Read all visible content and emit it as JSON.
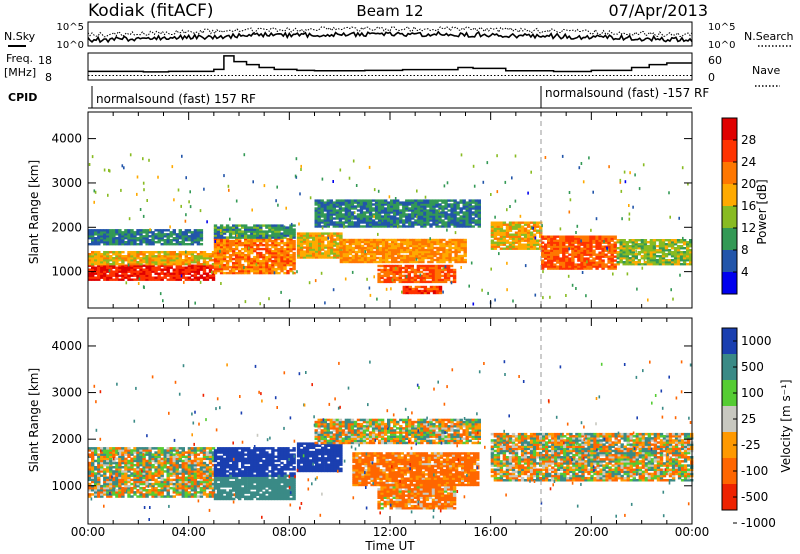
{
  "header": {
    "site": "Kodiak (fitACF)",
    "beam": "Beam 12",
    "date": "07/Apr/2013"
  },
  "noise": {
    "left_label": "N.Sky",
    "right_label": "N.Search",
    "left_ticks": [
      "10^5",
      "10^0"
    ],
    "right_ticks": [
      "10^5",
      "10^0"
    ]
  },
  "freq": {
    "left_label_1": "Freq.",
    "left_label_2": "[MHz]",
    "right_label": "Nave",
    "left_ticks": [
      "18",
      "8"
    ],
    "right_ticks": [
      "60",
      "0"
    ],
    "freq_steps": [
      {
        "t": 0.0,
        "v": 10.5
      },
      {
        "t": 1.2,
        "v": 10.5
      },
      {
        "t": 2.2,
        "v": 10.2
      },
      {
        "t": 3.2,
        "v": 10.5
      },
      {
        "t": 5.0,
        "v": 11.5
      },
      {
        "t": 5.4,
        "v": 18.5
      },
      {
        "t": 5.8,
        "v": 15.5
      },
      {
        "t": 6.3,
        "v": 14.0
      },
      {
        "t": 6.8,
        "v": 12.5
      },
      {
        "t": 7.4,
        "v": 11.5
      },
      {
        "t": 8.3,
        "v": 11.0
      },
      {
        "t": 9.0,
        "v": 10.8
      },
      {
        "t": 11.0,
        "v": 11.0
      },
      {
        "t": 12.5,
        "v": 11.4
      },
      {
        "t": 14.7,
        "v": 12.5
      },
      {
        "t": 15.3,
        "v": 12.0
      },
      {
        "t": 16.6,
        "v": 10.8
      },
      {
        "t": 18.5,
        "v": 10.4
      },
      {
        "t": 20.0,
        "v": 11.0
      },
      {
        "t": 21.6,
        "v": 12.5
      },
      {
        "t": 22.3,
        "v": 14.0
      },
      {
        "t": 23.0,
        "v": 14.8
      },
      {
        "t": 24.0,
        "v": 14.8
      }
    ],
    "nave_level": 10
  },
  "cpid": {
    "label": "CPID",
    "segments": [
      {
        "start": 0.0,
        "text": "normalsound (fast) 157 RF"
      },
      {
        "start": 18.0,
        "text": "normalsound (fast) -157 RF"
      }
    ]
  },
  "axes": {
    "ylabel": "Slant Range [km]",
    "xlabel": "Time UT",
    "yticks": [
      1000,
      2000,
      3000,
      4000
    ],
    "xticks": [
      "00:00",
      "04:00",
      "08:00",
      "12:00",
      "16:00",
      "20:00",
      "00:00"
    ],
    "xlim": [
      0,
      24
    ],
    "ylim": [
      180,
      4600
    ],
    "cpid_change_hour": 18.0
  },
  "power_scale": {
    "label": "Power [dB]",
    "ticks": [
      "28",
      "24",
      "20",
      "16",
      "12",
      "8",
      "4"
    ],
    "colors": [
      "#e00000",
      "#ff3300",
      "#ff7700",
      "#ffaa00",
      "#88bb22",
      "#339955",
      "#2255aa",
      "#0000ee"
    ]
  },
  "velocity_scale": {
    "label": "Velocity [m s⁻¹]",
    "ticks": [
      "1000",
      "500",
      "100",
      "25",
      "-25",
      "-100",
      "-500",
      "-1000"
    ],
    "colors": [
      "#1a3fb0",
      "#3a8a86",
      "#55cc33",
      "#c8c8c0",
      "#ff9900",
      "#ff6600",
      "#ee2200"
    ]
  },
  "chart_data": {
    "type": "heatmap",
    "title": "Kodiak (fitACF)",
    "xlabel": "Time UT",
    "ylabel": "Slant Range [km]",
    "xlim": [
      0,
      24
    ],
    "ylim": [
      180,
      4600
    ],
    "power_regions": [
      {
        "t0": 0.0,
        "t1": 5.0,
        "r0": 800,
        "r1": 1150,
        "power": 28
      },
      {
        "t0": 0.0,
        "t1": 5.0,
        "r0": 1150,
        "r1": 1450,
        "power": 18
      },
      {
        "t0": 0.0,
        "t1": 4.5,
        "r0": 1600,
        "r1": 1950,
        "power": 8
      },
      {
        "t0": 5.0,
        "t1": 8.2,
        "r0": 950,
        "r1": 1750,
        "power": 22
      },
      {
        "t0": 5.0,
        "t1": 8.2,
        "r0": 1750,
        "r1": 2050,
        "power": 10
      },
      {
        "t0": 8.3,
        "t1": 10.0,
        "r0": 1300,
        "r1": 1850,
        "power": 18
      },
      {
        "t0": 10.0,
        "t1": 15.0,
        "r0": 1200,
        "r1": 1700,
        "power": 20
      },
      {
        "t0": 11.5,
        "t1": 14.5,
        "r0": 750,
        "r1": 1150,
        "power": 24
      },
      {
        "t0": 12.5,
        "t1": 14.0,
        "r0": 500,
        "r1": 650,
        "power": 26
      },
      {
        "t0": 16.0,
        "t1": 18.0,
        "r0": 1500,
        "r1": 2100,
        "power": 18
      },
      {
        "t0": 18.0,
        "t1": 21.0,
        "r0": 1050,
        "r1": 1800,
        "power": 24
      },
      {
        "t0": 21.0,
        "t1": 24.0,
        "r0": 1150,
        "r1": 1700,
        "power": 14
      },
      {
        "t0": 9.0,
        "t1": 15.5,
        "r0": 2000,
        "r1": 2600,
        "power": 8
      }
    ],
    "velocity_regions": [
      {
        "t0": 0.0,
        "t1": 5.0,
        "r0": 750,
        "r1": 1800,
        "velocity": 0
      },
      {
        "t0": 5.0,
        "t1": 8.2,
        "r0": 700,
        "r1": 1200,
        "velocity": 300
      },
      {
        "t0": 5.0,
        "t1": 8.2,
        "r0": 1200,
        "r1": 1800,
        "velocity": 700
      },
      {
        "t0": 8.3,
        "t1": 10.0,
        "r0": 1300,
        "r1": 1900,
        "velocity": 800
      },
      {
        "t0": 10.5,
        "t1": 15.5,
        "r0": 1000,
        "r1": 1700,
        "velocity": -200
      },
      {
        "t0": 11.5,
        "t1": 14.5,
        "r0": 500,
        "r1": 1000,
        "velocity": -150
      },
      {
        "t0": 16.0,
        "t1": 24.0,
        "r0": 1100,
        "r1": 2100,
        "velocity": 0
      },
      {
        "t0": 9.0,
        "t1": 15.5,
        "r0": 1900,
        "r1": 2400,
        "velocity": 0
      }
    ]
  }
}
